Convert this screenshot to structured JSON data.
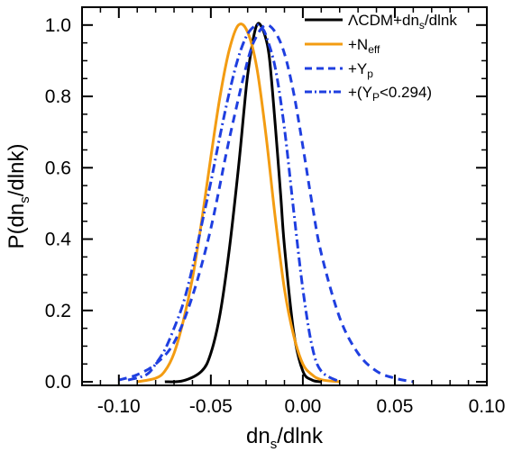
{
  "chart_data": {
    "type": "line",
    "xlabel": {
      "main": "dn",
      "sub": "s",
      "rest": "/dlnk"
    },
    "ylabel": {
      "main": "P(dn",
      "sub": "s",
      "rest": "/dlnk)"
    },
    "xlim": [
      -0.12,
      0.1
    ],
    "ylim": [
      -0.01,
      1.05
    ],
    "xticks": [
      -0.1,
      -0.05,
      0.0,
      0.05,
      0.1
    ],
    "xtick_labels": [
      "-0.10",
      "-0.05",
      "0.00",
      "0.05",
      "0.10"
    ],
    "yticks": [
      0.0,
      0.2,
      0.4,
      0.6,
      0.8,
      1.0
    ],
    "ytick_labels": [
      "0.0",
      "0.2",
      "0.4",
      "0.6",
      "0.8",
      "1.0"
    ],
    "grid": false,
    "legend_position": "top-right",
    "series": [
      {
        "name": "ΛCDM+dn_s/dlnk",
        "legend": {
          "main": "ΛCDM+dn",
          "sub": "s",
          "rest": "/dlnk"
        },
        "color": "#000000",
        "dash": "solid",
        "x": [
          -0.075,
          -0.065,
          -0.055,
          -0.05,
          -0.045,
          -0.04,
          -0.035,
          -0.032,
          -0.03,
          -0.027,
          -0.025,
          -0.023,
          -0.02,
          -0.018,
          -0.015,
          -0.012,
          -0.01,
          -0.005,
          0.0,
          0.005,
          0.01
        ],
        "y": [
          0.0,
          0.003,
          0.03,
          0.08,
          0.19,
          0.37,
          0.6,
          0.76,
          0.86,
          0.96,
          1.0,
          1.0,
          0.96,
          0.9,
          0.72,
          0.52,
          0.38,
          0.14,
          0.03,
          0.005,
          0.0
        ]
      },
      {
        "name": "+N_eff",
        "legend": {
          "main": "+N",
          "sub": "eff",
          "rest": ""
        },
        "color": "#f39c12",
        "dash": "solid",
        "x": [
          -0.09,
          -0.08,
          -0.075,
          -0.07,
          -0.065,
          -0.06,
          -0.055,
          -0.05,
          -0.045,
          -0.04,
          -0.035,
          -0.03,
          -0.025,
          -0.02,
          -0.015,
          -0.01,
          -0.005,
          0.0,
          0.005,
          0.01,
          0.02
        ],
        "y": [
          0.0,
          0.01,
          0.03,
          0.08,
          0.17,
          0.29,
          0.45,
          0.63,
          0.8,
          0.93,
          1.0,
          0.98,
          0.88,
          0.69,
          0.46,
          0.26,
          0.13,
          0.05,
          0.02,
          0.006,
          0.0
        ]
      },
      {
        "name": "+Y_p",
        "legend": {
          "main": "+Y",
          "sub": "p",
          "rest": ""
        },
        "color": "#1f3fe0",
        "dash": "dashed",
        "x": [
          -0.1,
          -0.09,
          -0.08,
          -0.07,
          -0.06,
          -0.05,
          -0.04,
          -0.03,
          -0.025,
          -0.02,
          -0.015,
          -0.01,
          -0.005,
          0.0,
          0.005,
          0.01,
          0.02,
          0.03,
          0.04,
          0.05,
          0.06
        ],
        "y": [
          0.005,
          0.02,
          0.05,
          0.11,
          0.24,
          0.43,
          0.68,
          0.9,
          0.97,
          1.0,
          0.98,
          0.92,
          0.81,
          0.66,
          0.5,
          0.36,
          0.18,
          0.08,
          0.03,
          0.01,
          0.0
        ]
      },
      {
        "name": "+(Y_P<0.294)",
        "legend": {
          "main": "+(Y",
          "sub": "P",
          "rest": "<0.294)"
        },
        "color": "#1f3fe0",
        "dash": "dashdot",
        "x": [
          -0.095,
          -0.085,
          -0.08,
          -0.075,
          -0.07,
          -0.065,
          -0.06,
          -0.055,
          -0.05,
          -0.045,
          -0.04,
          -0.035,
          -0.03,
          -0.025,
          -0.022,
          -0.02,
          -0.015,
          -0.01,
          -0.005,
          0.0,
          0.005,
          0.01,
          0.02
        ],
        "y": [
          0.005,
          0.02,
          0.05,
          0.09,
          0.15,
          0.22,
          0.32,
          0.44,
          0.56,
          0.69,
          0.81,
          0.91,
          0.975,
          1.0,
          0.99,
          0.97,
          0.88,
          0.71,
          0.48,
          0.26,
          0.1,
          0.03,
          0.0
        ]
      }
    ]
  }
}
